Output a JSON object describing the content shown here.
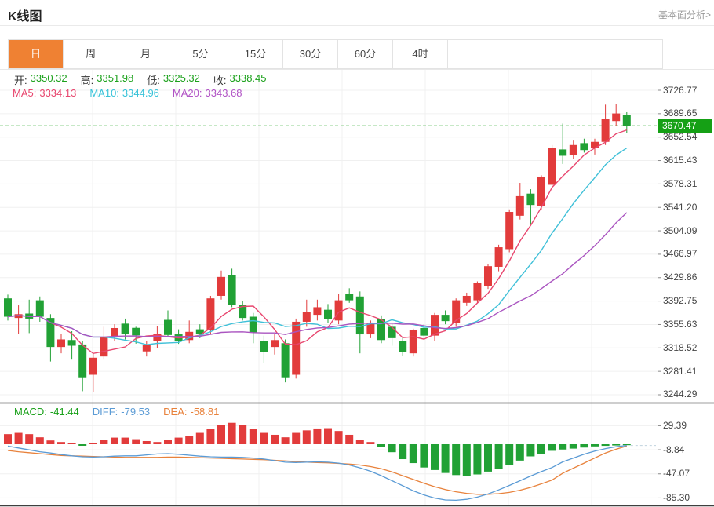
{
  "header": {
    "title": "K线图",
    "link": "基本面分析>"
  },
  "tabs": [
    {
      "label": "日",
      "active": true
    },
    {
      "label": "周",
      "active": false
    },
    {
      "label": "月",
      "active": false
    },
    {
      "label": "5分",
      "active": false
    },
    {
      "label": "15分",
      "active": false
    },
    {
      "label": "30分",
      "active": false
    },
    {
      "label": "60分",
      "active": false
    },
    {
      "label": "4时",
      "active": false
    }
  ],
  "legend": {
    "ohlc": [
      {
        "label": "开:",
        "value": "3350.32"
      },
      {
        "label": "高:",
        "value": "3351.98"
      },
      {
        "label": "低:",
        "value": "3325.32"
      },
      {
        "label": "收:",
        "value": "3338.45"
      }
    ],
    "ma": [
      {
        "label": "MA5:",
        "value": "3334.13",
        "color": "#e8476f"
      },
      {
        "label": "MA10:",
        "value": "3344.96",
        "color": "#36c2d8"
      },
      {
        "label": "MA20:",
        "value": "3343.68",
        "color": "#b153c5"
      }
    ]
  },
  "macd_legend": [
    {
      "label": "MACD:",
      "value": "-41.44",
      "color": "#1ba11b"
    },
    {
      "label": "DIFF:",
      "value": "-79.53",
      "color": "#5b9bd5"
    },
    {
      "label": "DEA:",
      "value": "-58.81",
      "color": "#e8823c"
    }
  ],
  "price_axis": {
    "labels": [
      "3726.77",
      "3689.65",
      "3652.54",
      "3615.43",
      "3578.31",
      "3541.20",
      "3504.09",
      "3466.97",
      "3429.86",
      "3392.75",
      "3355.63",
      "3318.52",
      "3281.41",
      "3244.29"
    ],
    "current": "3670.47",
    "current_value": 3670.47
  },
  "macd_axis": {
    "labels": [
      "29.39",
      "-8.84",
      "-47.07",
      "-85.30"
    ]
  },
  "colors": {
    "up": "#e23b3b",
    "down": "#21a135",
    "accent_tab": "#ef8133",
    "price_line": "#1ba11b",
    "tag_bg": "#15a015",
    "ma5": "#e8476f",
    "ma10": "#3fc0d8",
    "ma20": "#aa55c0",
    "diff": "#5b9bd5",
    "dea": "#e8823c",
    "grid": "#efefef",
    "axis": "#999999",
    "tail": "#c0d2de",
    "separator": "#3f3f3f"
  },
  "chart_data": {
    "type": "candlestick",
    "title": "K线图",
    "period": "日",
    "price_range": [
      3244.29,
      3726.77
    ],
    "macd_range": [
      -85.3,
      29.39
    ],
    "candles": [
      [
        3397,
        3403,
        3362,
        3368
      ],
      [
        3366,
        3386,
        3341,
        3372
      ],
      [
        3373,
        3395,
        3342,
        3365
      ],
      [
        3394,
        3400,
        3360,
        3368
      ],
      [
        3366,
        3372,
        3297,
        3320
      ],
      [
        3320,
        3340,
        3310,
        3332
      ],
      [
        3331,
        3345,
        3300,
        3322
      ],
      [
        3324,
        3330,
        3250,
        3272
      ],
      [
        3276,
        3310,
        3248,
        3303
      ],
      [
        3305,
        3352,
        3300,
        3336
      ],
      [
        3336,
        3356,
        3330,
        3350
      ],
      [
        3357,
        3365,
        3332,
        3340
      ],
      [
        3350.32,
        3351.98,
        3325.32,
        3338.45
      ],
      [
        3313,
        3330,
        3305,
        3323
      ],
      [
        3329,
        3353,
        3318,
        3341
      ],
      [
        3363,
        3378,
        3335,
        3339
      ],
      [
        3340,
        3348,
        3325,
        3330
      ],
      [
        3331,
        3362,
        3326,
        3344
      ],
      [
        3348,
        3356,
        3334,
        3340
      ],
      [
        3347,
        3401,
        3340,
        3397
      ],
      [
        3401,
        3441,
        3395,
        3431
      ],
      [
        3434,
        3444,
        3383,
        3387
      ],
      [
        3387,
        3393,
        3362,
        3366
      ],
      [
        3368,
        3374,
        3326,
        3343
      ],
      [
        3330,
        3338,
        3295,
        3312
      ],
      [
        3320,
        3340,
        3308,
        3331
      ],
      [
        3326,
        3332,
        3264,
        3272
      ],
      [
        3276,
        3365,
        3270,
        3360
      ],
      [
        3360,
        3395,
        3352,
        3375
      ],
      [
        3371,
        3395,
        3362,
        3383
      ],
      [
        3379,
        3388,
        3358,
        3364
      ],
      [
        3362,
        3404,
        3356,
        3394
      ],
      [
        3404,
        3413,
        3390,
        3394
      ],
      [
        3400,
        3408,
        3310,
        3340
      ],
      [
        3340,
        3362,
        3334,
        3357
      ],
      [
        3364,
        3370,
        3326,
        3331
      ],
      [
        3352,
        3358,
        3322,
        3334
      ],
      [
        3330,
        3336,
        3306,
        3312
      ],
      [
        3310,
        3349,
        3305,
        3347
      ],
      [
        3350,
        3356,
        3333,
        3338
      ],
      [
        3338,
        3374,
        3330,
        3371
      ],
      [
        3371,
        3378,
        3356,
        3361
      ],
      [
        3358,
        3397,
        3352,
        3394
      ],
      [
        3390,
        3406,
        3385,
        3401
      ],
      [
        3394,
        3424,
        3389,
        3421
      ],
      [
        3417,
        3452,
        3412,
        3448
      ],
      [
        3447,
        3482,
        3440,
        3478
      ],
      [
        3475,
        3538,
        3470,
        3534
      ],
      [
        3528,
        3580,
        3522,
        3559
      ],
      [
        3563,
        3570,
        3513,
        3545
      ],
      [
        3543,
        3592,
        3538,
        3590
      ],
      [
        3577,
        3640,
        3572,
        3636
      ],
      [
        3633,
        3674,
        3610,
        3623
      ],
      [
        3624,
        3647,
        3618,
        3640
      ],
      [
        3643,
        3650,
        3628,
        3632
      ],
      [
        3635,
        3650,
        3625,
        3645
      ],
      [
        3645,
        3704,
        3640,
        3682
      ],
      [
        3678,
        3705,
        3670,
        3690
      ],
      [
        3688,
        3692,
        3659,
        3670
      ]
    ],
    "ma_windows": [
      5,
      10,
      20
    ],
    "macd": {
      "hist": [
        16,
        18,
        16,
        11,
        6,
        3.5,
        1.7,
        -2.5,
        2.5,
        7,
        10.5,
        10.5,
        8,
        5,
        3.5,
        7,
        10.5,
        13.6,
        18,
        24.6,
        31,
        34,
        31,
        24.6,
        18,
        15,
        11,
        18,
        22,
        25,
        25.5,
        21,
        15,
        7,
        3.5,
        -4,
        -12.7,
        -23.7,
        -30,
        -37,
        -41,
        -45.7,
        -49,
        -50,
        -48,
        -43.5,
        -39,
        -32.5,
        -26,
        -19.3,
        -15,
        -10.5,
        -8.4,
        -7,
        -5.3,
        -3.5,
        -2.6,
        -2,
        -1.5
      ],
      "diff": [
        -3,
        -6,
        -9,
        -12,
        -14,
        -16.5,
        -18.5,
        -20,
        -20.5,
        -20,
        -19,
        -18.5,
        -18.5,
        -17,
        -15.5,
        -15,
        -16,
        -17.5,
        -19,
        -20,
        -20.5,
        -20.5,
        -21,
        -22,
        -23.5,
        -26,
        -28.5,
        -29,
        -28.5,
        -28,
        -28.5,
        -30,
        -33,
        -37.5,
        -43,
        -50,
        -58,
        -66,
        -74,
        -80.5,
        -85.5,
        -88.5,
        -89,
        -87.5,
        -84,
        -79,
        -72.5,
        -65.5,
        -58,
        -50.5,
        -43.5,
        -37,
        -28,
        -22,
        -16,
        -11,
        -7,
        -4,
        -2
      ],
      "dea": [
        -10,
        -12,
        -13.5,
        -15,
        -16.5,
        -18,
        -18.5,
        -19,
        -19.5,
        -20,
        -20.5,
        -21,
        -21,
        -21,
        -21,
        -20.5,
        -20.5,
        -21,
        -21.5,
        -22,
        -22.5,
        -23,
        -23.5,
        -24,
        -24.5,
        -25.5,
        -26.5,
        -27.5,
        -28.5,
        -29,
        -29.5,
        -30.5,
        -31.5,
        -33,
        -35.5,
        -39,
        -44,
        -50,
        -56,
        -62,
        -67.5,
        -72,
        -75.5,
        -78,
        -79.5,
        -79.5,
        -78.5,
        -76.5,
        -73,
        -68.5,
        -63,
        -57,
        -46,
        -38,
        -30,
        -22,
        -14,
        -8,
        -3
      ]
    }
  }
}
